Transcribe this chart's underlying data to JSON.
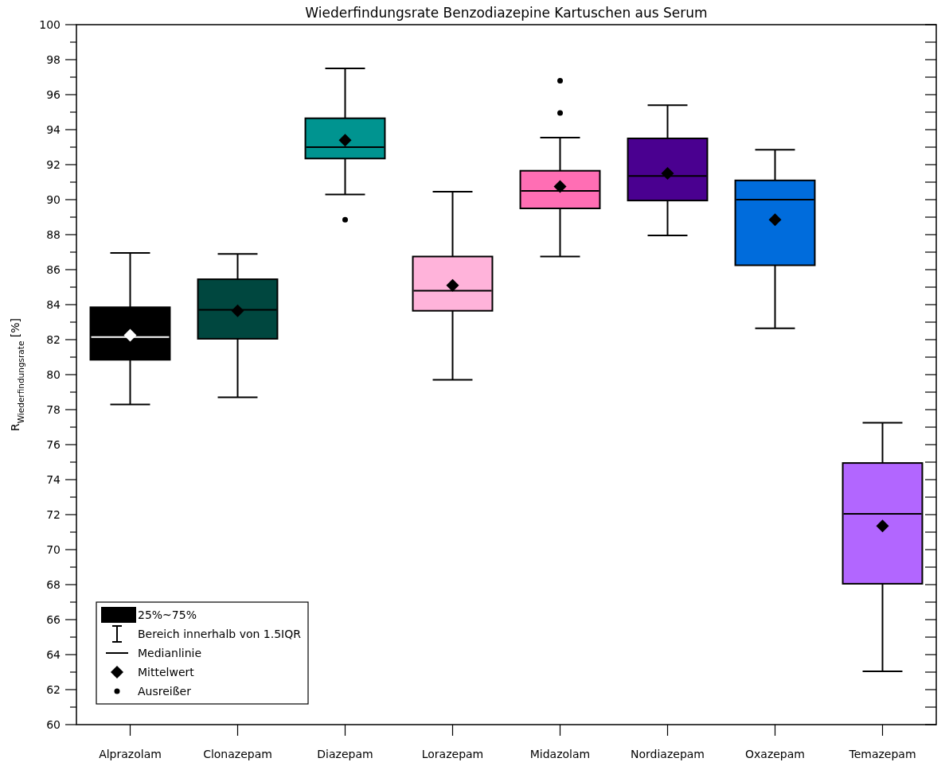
{
  "chart_data": {
    "type": "box",
    "title": "Wiederfindungsrate Benzodiazepine Kartuschen aus Serum",
    "ylabel": "R$_{Wiederfindungsrate}$ [%]",
    "categories": [
      "Alprazolam",
      "Clonazepam",
      "Diazepam",
      "Lorazepam",
      "Midazolam",
      "Nordiazepam",
      "Oxazepam",
      "Temazepam"
    ],
    "colors": [
      "#000000",
      "#00473f",
      "#009490",
      "#ffb3da",
      "#ff6eb4",
      "#4a0090",
      "#006cdc",
      "#b266ff"
    ],
    "boxes": [
      {
        "low": 78.3,
        "q1": 80.85,
        "median": 82.15,
        "q3": 83.85,
        "high": 86.95,
        "mean": 82.25
      },
      {
        "low": 78.7,
        "q1": 82.05,
        "median": 83.7,
        "q3": 85.45,
        "high": 86.9,
        "mean": 83.65
      },
      {
        "low": 90.3,
        "q1": 92.35,
        "median": 93.0,
        "q3": 94.65,
        "high": 97.5,
        "mean": 93.4,
        "outliers": [
          88.85
        ]
      },
      {
        "low": 79.7,
        "q1": 83.65,
        "median": 84.8,
        "q3": 86.75,
        "high": 90.45,
        "mean": 85.1
      },
      {
        "low": 86.75,
        "q1": 89.5,
        "median": 90.5,
        "q3": 91.65,
        "high": 93.55,
        "mean": 90.75,
        "outliers": [
          94.95,
          96.8
        ]
      },
      {
        "low": 87.95,
        "q1": 89.95,
        "median": 91.35,
        "q3": 93.5,
        "high": 95.4,
        "mean": 91.5
      },
      {
        "low": 82.65,
        "q1": 86.25,
        "median": 90.0,
        "q3": 91.1,
        "high": 92.85,
        "mean": 88.85
      },
      {
        "low": 63.05,
        "q1": 68.05,
        "median": 72.05,
        "q3": 74.95,
        "high": 77.25,
        "mean": 71.35
      }
    ],
    "ylim": [
      60,
      100
    ],
    "yticks": [
      60,
      {
        "value": 61,
        "label": null
      },
      62,
      {
        "value": 63,
        "label": null
      },
      64,
      {
        "value": 65,
        "label": null
      },
      66,
      {
        "value": 67,
        "label": null
      },
      68,
      {
        "value": 69,
        "label": null
      },
      70,
      {
        "value": 71,
        "label": null
      },
      72,
      {
        "value": 73,
        "label": null
      },
      74,
      {
        "value": 75,
        "label": null
      },
      76,
      {
        "value": 77,
        "label": null
      },
      78,
      {
        "value": 79,
        "label": null
      },
      80,
      {
        "value": 81,
        "label": null
      },
      82,
      {
        "value": 83,
        "label": null
      },
      84,
      {
        "value": 85,
        "label": null
      },
      86,
      {
        "value": 87,
        "label": null
      },
      88,
      {
        "value": 89,
        "label": null
      },
      90,
      {
        "value": 91,
        "label": null
      },
      92,
      {
        "value": 93,
        "label": null
      },
      94,
      {
        "value": 95,
        "label": null
      },
      96,
      {
        "value": 97,
        "label": null
      },
      98,
      {
        "value": 99,
        "label": null
      },
      100
    ],
    "annotations": [
      "25%~75%",
      "Bereich innerhalb von 1.5IQR",
      "Medianlinie",
      "Mittelwert",
      "Ausreißer"
    ]
  }
}
